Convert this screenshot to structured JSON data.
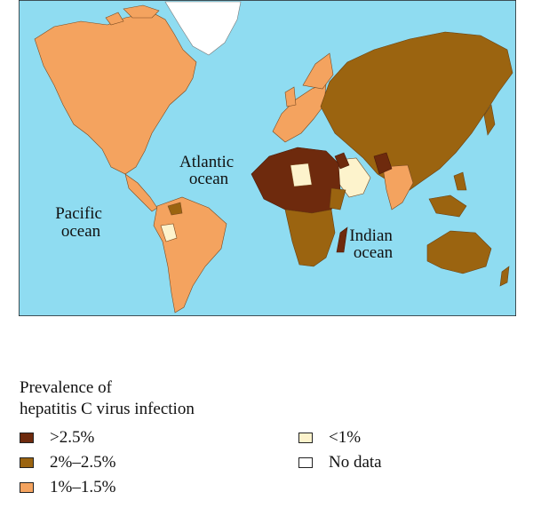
{
  "map": {
    "ocean_labels": {
      "pacific": [
        "Pacific",
        "ocean"
      ],
      "atlantic": [
        "Atlantic",
        "ocean"
      ],
      "indian": [
        "Indian",
        "ocean"
      ]
    },
    "colors": {
      "sea": "#8fdcf1",
      "high": "#6e2a0d",
      "mid": "#9b6410",
      "low": "#f4a35f",
      "very_low": "#fdf3cc",
      "no_data": "#ffffff",
      "border": "#5a3a1a"
    }
  },
  "legend": {
    "title_line1": "Prevalence of",
    "title_line2": "hepatitis C virus infection",
    "items": [
      {
        "label": ">2.5%",
        "color": "#6e2a0d"
      },
      {
        "label": "2%–2.5%",
        "color": "#9b6410"
      },
      {
        "label": "1%–1.5%",
        "color": "#f4a35f"
      },
      {
        "label": "<1%",
        "color": "#fdf3cc"
      },
      {
        "label": "No data",
        "color": "#ffffff"
      }
    ]
  }
}
